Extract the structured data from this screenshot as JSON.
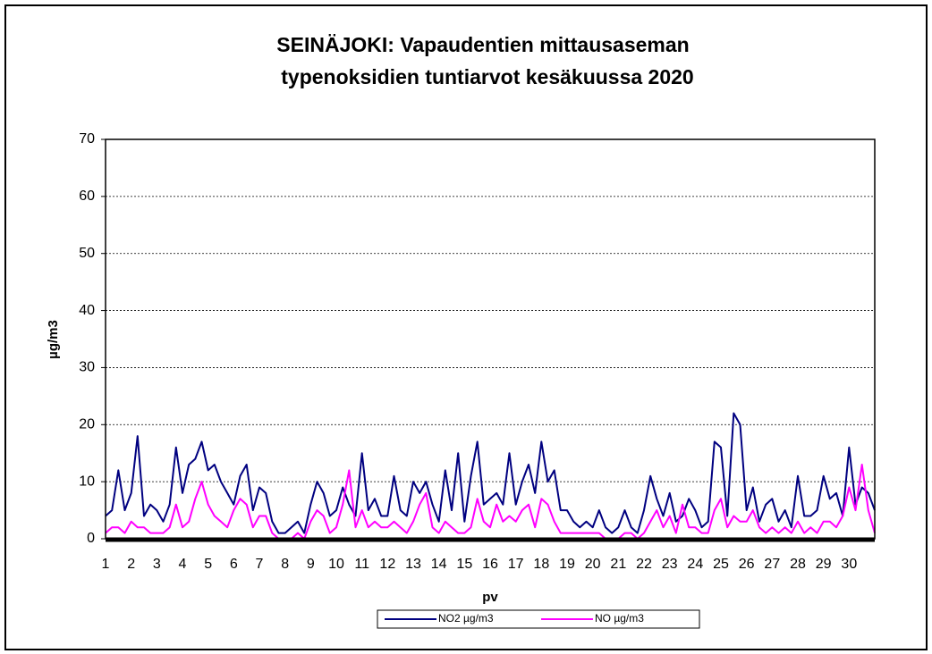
{
  "chart_data": {
    "type": "line",
    "title": [
      "SEINÄJOKI: Vapaudentien mittausaseman",
      "typenoksidien tuntiarvot kesäkuussa 2020"
    ],
    "y_label": "µg/m3",
    "x_label": "pv",
    "xlim": [
      1,
      31
    ],
    "xticks": [
      1,
      2,
      3,
      4,
      5,
      6,
      7,
      8,
      9,
      10,
      11,
      12,
      13,
      14,
      15,
      16,
      17,
      18,
      19,
      20,
      21,
      22,
      23,
      24,
      25,
      26,
      27,
      28,
      29,
      30
    ],
    "ylim": [
      0,
      70
    ],
    "yticks": [
      0,
      10,
      20,
      30,
      40,
      50,
      60,
      70
    ],
    "grid": true,
    "x": [
      1,
      1.25,
      1.5,
      1.75,
      2,
      2.25,
      2.5,
      2.75,
      3,
      3.25,
      3.5,
      3.75,
      4,
      4.25,
      4.5,
      4.75,
      5,
      5.25,
      5.5,
      5.75,
      6,
      6.25,
      6.5,
      6.75,
      7,
      7.25,
      7.5,
      7.75,
      8,
      8.25,
      8.5,
      8.75,
      9,
      9.25,
      9.5,
      9.75,
      10,
      10.25,
      10.5,
      10.75,
      11,
      11.25,
      11.5,
      11.75,
      12,
      12.25,
      12.5,
      12.75,
      13,
      13.25,
      13.5,
      13.75,
      14,
      14.25,
      14.5,
      14.75,
      15,
      15.25,
      15.5,
      15.75,
      16,
      16.25,
      16.5,
      16.75,
      17,
      17.25,
      17.5,
      17.75,
      18,
      18.25,
      18.5,
      18.75,
      19,
      19.25,
      19.5,
      19.75,
      20,
      20.25,
      20.5,
      20.75,
      21,
      21.25,
      21.5,
      21.75,
      22,
      22.25,
      22.5,
      22.75,
      23,
      23.25,
      23.5,
      23.75,
      24,
      24.25,
      24.5,
      24.75,
      25,
      25.25,
      25.5,
      25.75,
      26,
      26.25,
      26.5,
      26.75,
      27,
      27.25,
      27.5,
      27.75,
      28,
      28.25,
      28.5,
      28.75,
      29,
      29.25,
      29.5,
      29.75,
      30,
      30.25,
      30.5,
      30.75,
      31
    ],
    "series": [
      {
        "name": "NO2 µg/m3",
        "color": "#000080",
        "values": [
          4,
          5,
          12,
          5,
          8,
          18,
          4,
          6,
          5,
          3,
          6,
          16,
          8,
          13,
          14,
          17,
          12,
          13,
          10,
          8,
          6,
          11,
          13,
          5,
          9,
          8,
          3,
          1,
          1,
          2,
          3,
          1,
          6,
          10,
          8,
          4,
          5,
          9,
          6,
          4,
          15,
          5,
          7,
          4,
          4,
          11,
          5,
          4,
          10,
          8,
          10,
          6,
          3,
          12,
          5,
          15,
          3,
          11,
          17,
          6,
          7,
          8,
          6,
          15,
          6,
          10,
          13,
          8,
          17,
          10,
          12,
          5,
          5,
          3,
          2,
          3,
          2,
          5,
          2,
          1,
          2,
          5,
          2,
          1,
          5,
          11,
          7,
          4,
          8,
          3,
          4,
          7,
          5,
          2,
          3,
          17,
          16,
          4,
          22,
          20,
          5,
          9,
          3,
          6,
          7,
          3,
          5,
          2,
          11,
          4,
          4,
          5,
          11,
          7,
          8,
          4,
          16,
          6,
          9,
          8,
          5
        ]
      },
      {
        "name": "NO µg/m3",
        "color": "#ff00ff",
        "values": [
          1,
          2,
          2,
          1,
          3,
          2,
          2,
          1,
          1,
          1,
          2,
          6,
          2,
          3,
          7,
          10,
          6,
          4,
          3,
          2,
          5,
          7,
          6,
          2,
          4,
          4,
          1,
          0,
          0,
          0,
          1,
          0,
          3,
          5,
          4,
          1,
          2,
          6,
          12,
          2,
          5,
          2,
          3,
          2,
          2,
          3,
          2,
          1,
          3,
          6,
          8,
          2,
          1,
          3,
          2,
          1,
          1,
          2,
          7,
          3,
          2,
          6,
          3,
          4,
          3,
          5,
          6,
          2,
          7,
          6,
          3,
          1,
          1,
          1,
          1,
          1,
          1,
          1,
          0,
          0,
          0,
          1,
          1,
          0,
          1,
          3,
          5,
          2,
          4,
          1,
          6,
          2,
          2,
          1,
          1,
          5,
          7,
          2,
          4,
          3,
          3,
          5,
          2,
          1,
          2,
          1,
          2,
          1,
          3,
          1,
          2,
          1,
          3,
          3,
          2,
          4,
          9,
          5,
          13,
          5,
          1
        ]
      }
    ]
  }
}
